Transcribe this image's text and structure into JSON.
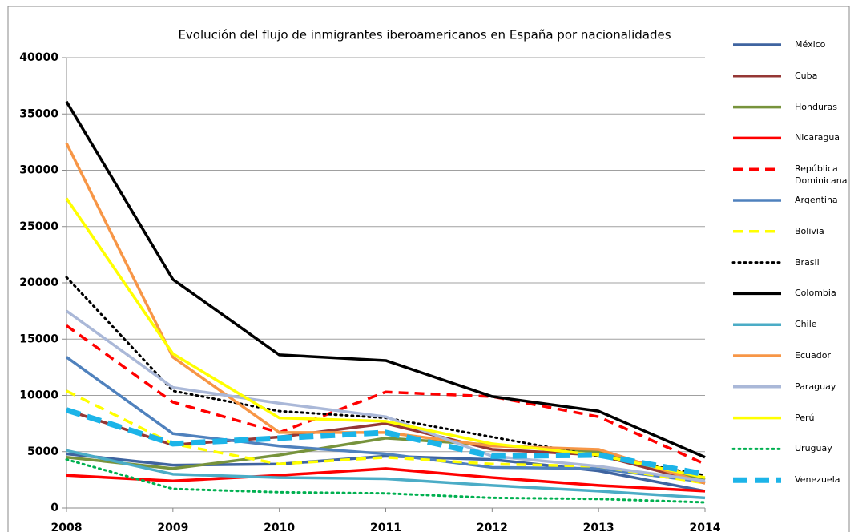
{
  "chart_data": {
    "type": "line",
    "title": "Evolución del flujo de inmigrantes iberoamericanos en España por nacionalidades",
    "x": [
      2008,
      2009,
      2010,
      2011,
      2012,
      2013,
      2014
    ],
    "xlim": [
      2008,
      2014
    ],
    "xticks": [
      2008,
      2009,
      2010,
      2011,
      2012,
      2013,
      2014
    ],
    "ylim": [
      0,
      40000
    ],
    "yticks": [
      0,
      5000,
      10000,
      15000,
      20000,
      25000,
      30000,
      35000,
      40000
    ],
    "grid": true,
    "legend": "right",
    "series": [
      {
        "name": "México",
        "color": "#3f64a0",
        "line_style": "solid",
        "values": [
          4800,
          3800,
          3900,
          4600,
          4300,
          3300,
          1500
        ]
      },
      {
        "name": "Cuba",
        "color": "#953735",
        "line_style": "solid",
        "values": [
          8700,
          5600,
          6300,
          7500,
          5200,
          4700,
          2200
        ]
      },
      {
        "name": "Honduras",
        "color": "#77933c",
        "line_style": "solid",
        "values": [
          4500,
          3500,
          4700,
          6200,
          5600,
          5000,
          2500
        ]
      },
      {
        "name": "Nicaragua",
        "color": "#ff0000",
        "line_style": "solid",
        "values": [
          2900,
          2400,
          2900,
          3500,
          2700,
          2000,
          1500
        ]
      },
      {
        "name": "República Dominicana",
        "color": "#ff0000",
        "line_style": "dashed",
        "values": [
          16200,
          9400,
          6700,
          10300,
          9900,
          8100,
          3900
        ]
      },
      {
        "name": "Argentina",
        "color": "#4f81bd",
        "line_style": "solid",
        "values": [
          13400,
          6600,
          5500,
          4800,
          3600,
          3500,
          2300
        ]
      },
      {
        "name": "Bolivia",
        "color": "#ffff00",
        "line_style": "dashed",
        "values": [
          10400,
          5700,
          3900,
          4500,
          3900,
          3700,
          2200
        ]
      },
      {
        "name": "Brasil",
        "color": "#000000",
        "line_style": "dotted",
        "values": [
          20500,
          10400,
          8600,
          8000,
          6300,
          4600,
          2900
        ]
      },
      {
        "name": "Colombia",
        "color": "#000000",
        "line_style": "solid",
        "values": [
          36100,
          20300,
          13600,
          13100,
          9900,
          8600,
          4500
        ]
      },
      {
        "name": "Chile",
        "color": "#4bacc6",
        "line_style": "solid",
        "values": [
          5100,
          3000,
          2700,
          2600,
          2000,
          1500,
          900
        ]
      },
      {
        "name": "Ecuador",
        "color": "#f79646",
        "line_style": "solid",
        "values": [
          32400,
          13400,
          6700,
          6700,
          5500,
          5200,
          2200
        ]
      },
      {
        "name": "Paraguay",
        "color": "#aab8d8",
        "line_style": "solid",
        "values": [
          17500,
          10700,
          9300,
          8100,
          4600,
          3700,
          2400
        ]
      },
      {
        "name": "Perú",
        "color": "#ffff00",
        "line_style": "solid",
        "values": [
          27500,
          13700,
          8000,
          7700,
          5700,
          4700,
          2700
        ]
      },
      {
        "name": "Uruguay",
        "color": "#00b050",
        "line_style": "dotted",
        "values": [
          4300,
          1700,
          1400,
          1300,
          900,
          800,
          500
        ]
      },
      {
        "name": "Venezuela",
        "color": "#1cb4e8",
        "line_style": "dashed-wide",
        "values": [
          8700,
          5700,
          6200,
          6700,
          4600,
          4700,
          3000
        ]
      }
    ]
  }
}
